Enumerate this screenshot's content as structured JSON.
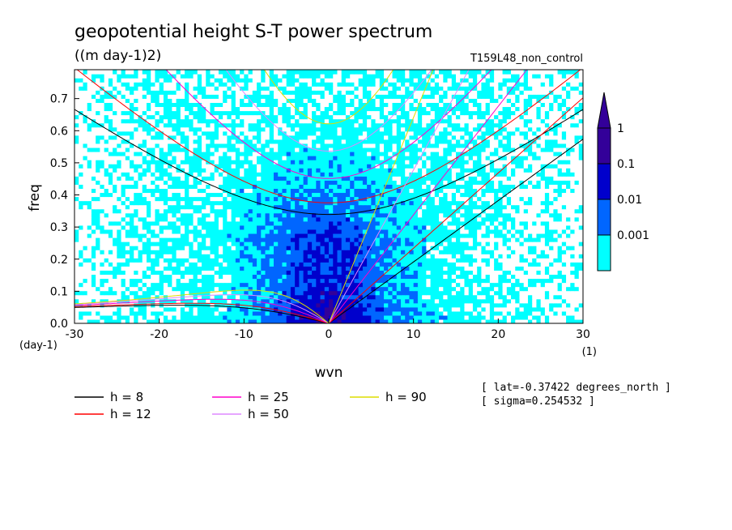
{
  "chart_data": {
    "type": "heatmap",
    "title": "geopotential height S-T power spectrum",
    "subtitle": "((m day-1)2)",
    "experiment": "T159L48_non_control",
    "xlabel": "wvn",
    "ylabel": "freq",
    "x_unit": "(1)",
    "y_unit": "(day-1)",
    "xlim": [
      -30,
      30
    ],
    "ylim": [
      0,
      0.79
    ],
    "xticks": [
      "-30",
      "-20",
      "-10",
      "0",
      "10",
      "20",
      "30"
    ],
    "yticks": [
      "0.0",
      "0.1",
      "0.2",
      "0.3",
      "0.4",
      "0.5",
      "0.6",
      "0.7"
    ],
    "xtick_values": [
      -30,
      -20,
      -10,
      0,
      10,
      20,
      30
    ],
    "ytick_values": [
      0,
      0.1,
      0.2,
      0.3,
      0.4,
      0.5,
      0.6,
      0.7
    ],
    "colorbar": {
      "levels": [
        "0.001",
        "0.01",
        "0.1",
        "1"
      ],
      "colors": [
        "#ffffff",
        "#00ffff",
        "#0066ff",
        "#0000cc",
        "#330099"
      ]
    },
    "annotations": [
      "[ lat=-0.37422 degrees_north ]",
      "[ sigma=0.254532 ]"
    ],
    "dispersion_curves": [
      {
        "label": "h =  8",
        "h": 8,
        "color": "#000000"
      },
      {
        "label": "h = 12",
        "h": 12,
        "color": "#ff0000"
      },
      {
        "label": "h = 25",
        "h": 25,
        "color": "#ff00cc"
      },
      {
        "label": "h = 50",
        "h": 50,
        "color": "#dd88ff"
      },
      {
        "label": "h = 90",
        "h": 90,
        "color": "#dddd00"
      }
    ]
  }
}
